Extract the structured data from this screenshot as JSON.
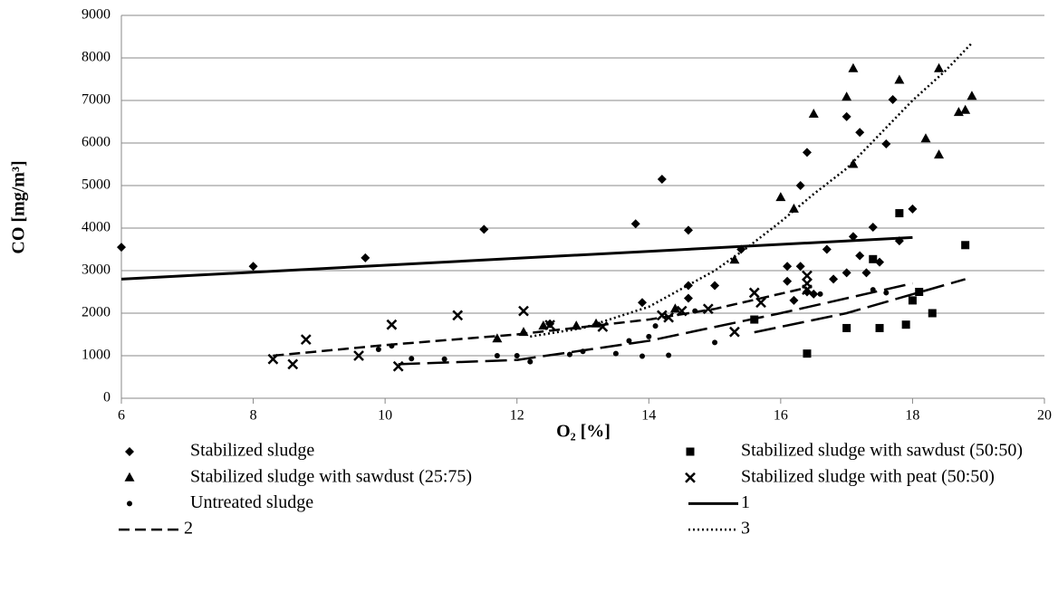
{
  "chart_data": {
    "type": "scatter",
    "x_label": "O₂ [%]",
    "y_label": "CO [mg/m³]",
    "xlim": [
      6,
      20
    ],
    "xticks": [
      6,
      8,
      10,
      12,
      14,
      16,
      18,
      20
    ],
    "ylim": [
      0,
      9000
    ],
    "yticks": [
      0,
      1000,
      2000,
      3000,
      4000,
      5000,
      6000,
      7000,
      8000,
      9000
    ],
    "grid": true,
    "legend": "bottom",
    "series": [
      {
        "name": "Stabilized sludge",
        "kind": "scatter",
        "marker": "diamond",
        "color": "#000000",
        "x": [
          6,
          8,
          9.7,
          11.5,
          13.8,
          14.2,
          14.6,
          13.9,
          14.6,
          14.6,
          15,
          15.4,
          16.1,
          16.1,
          16.2,
          16.3,
          16.3,
          16.4,
          16.4,
          16.5,
          16.7,
          16.8,
          17,
          17,
          17.1,
          17.2,
          17.2,
          17.3,
          17.4,
          17.5,
          17.6,
          17.7,
          17.8,
          18,
          12.5
        ],
        "values": [
          3550,
          3100,
          3300,
          3970,
          4100,
          5150,
          3950,
          2250,
          2650,
          2350,
          2650,
          3500,
          3100,
          2750,
          2300,
          3100,
          5000,
          5780,
          2500,
          2450,
          3500,
          2800,
          2950,
          6620,
          3800,
          3350,
          6250,
          2950,
          4020,
          3200,
          5980,
          7020,
          3700,
          4450,
          1750
        ]
      },
      {
        "name": "Stabilized sludge with sawdust (50:50)",
        "kind": "scatter",
        "marker": "square",
        "color": "#000000",
        "x": [
          15.6,
          16.4,
          17,
          17.4,
          17.5,
          17.8,
          17.9,
          18,
          18.1,
          18.3,
          18.8
        ],
        "values": [
          1850,
          1050,
          1650,
          3270,
          1650,
          4350,
          1730,
          2300,
          2500,
          2000,
          3600
        ]
      },
      {
        "name": "Stabilized sludge with sawdust (25:75)",
        "kind": "scatter",
        "marker": "triangle",
        "color": "#000000",
        "x": [
          11.7,
          12.1,
          12.9,
          13.2,
          14.4,
          15.3,
          16,
          16.2,
          16.5,
          17,
          17.1,
          17.1,
          17.8,
          18.2,
          18.4,
          18.4,
          18.7,
          18.8,
          18.9,
          12.4
        ],
        "values": [
          1400,
          1550,
          1700,
          1750,
          2100,
          3250,
          4720,
          4450,
          6680,
          7080,
          7750,
          5500,
          7480,
          6100,
          7750,
          5720,
          6720,
          6770,
          7100,
          1700
        ]
      },
      {
        "name": "Stabilized sludge with peat (50:50)",
        "kind": "scatter",
        "marker": "cross",
        "color": "#000000",
        "x": [
          8.3,
          8.6,
          8.8,
          9.6,
          10.1,
          10.2,
          11.1,
          12.1,
          12.5,
          13.3,
          14.2,
          14.3,
          14.5,
          14.9,
          15.3,
          15.6,
          15.7,
          16.4,
          16.4,
          16.4
        ],
        "values": [
          920,
          800,
          1380,
          1000,
          1730,
          750,
          1950,
          2050,
          1720,
          1680,
          1950,
          1900,
          2050,
          2100,
          1560,
          2480,
          2250,
          2880,
          2700,
          2550
        ]
      },
      {
        "name": "Untreated sludge",
        "kind": "scatter",
        "marker": "circle",
        "color": "#000000",
        "x": [
          9.9,
          10.1,
          10.4,
          10.9,
          11.7,
          12,
          12.2,
          12.8,
          13,
          13.5,
          13.7,
          13.9,
          14,
          14.1,
          14.3,
          14.7,
          15,
          16.2,
          16.6,
          17.4,
          17.6
        ],
        "values": [
          1150,
          1230,
          930,
          920,
          1000,
          1000,
          860,
          1030,
          1100,
          1050,
          1350,
          990,
          1450,
          1700,
          1010,
          2050,
          1310,
          2300,
          2450,
          2550,
          2480
        ]
      },
      {
        "name": "1",
        "kind": "line",
        "dash": "solid",
        "color": "#000000",
        "x": [
          6,
          18
        ],
        "values": [
          2800,
          3780
        ]
      },
      {
        "name": "2",
        "kind": "line",
        "dash": "dash",
        "color": "#000000",
        "x": [
          8.3,
          10,
          12,
          14,
          15,
          16.4
        ],
        "values": [
          1000,
          1250,
          1500,
          1850,
          2100,
          2600
        ]
      },
      {
        "name": "3",
        "kind": "line",
        "dash": "dot",
        "color": "#000000",
        "x": [
          12.2,
          13,
          14,
          15,
          15.5,
          16,
          16.5,
          17,
          17.5,
          18,
          18.5,
          18.9
        ],
        "values": [
          1450,
          1650,
          2150,
          3000,
          3550,
          4150,
          4800,
          5400,
          6200,
          7000,
          7700,
          8350
        ]
      },
      {
        "kind": "line",
        "dash": "longdash",
        "color": "#000000",
        "x": [
          10.2,
          12,
          14,
          16,
          18
        ],
        "values": [
          800,
          900,
          1350,
          2000,
          2700
        ]
      },
      {
        "kind": "line",
        "dash": "longdash",
        "color": "#000000",
        "x": [
          15.6,
          17,
          18.8
        ],
        "values": [
          1550,
          2000,
          2800
        ]
      }
    ]
  }
}
